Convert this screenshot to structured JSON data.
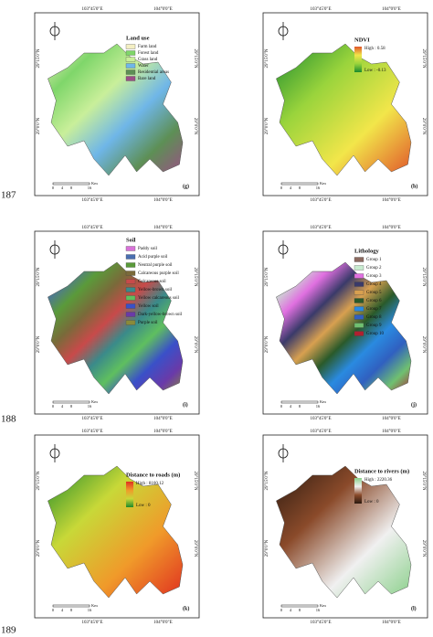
{
  "line_numbers": [
    "187",
    "188",
    "189"
  ],
  "coordinates": {
    "longitudes": [
      "103°45'0\"E",
      "104°0'0\"E"
    ],
    "latitudes": [
      "29°15'0\"N",
      "29°0'0\"N"
    ]
  },
  "scale_bar": {
    "ticks": [
      "0",
      "4",
      "8",
      "16"
    ],
    "unit": "Km"
  },
  "panels": [
    {
      "label": "(g)",
      "legend": {
        "title": "Land use",
        "items": [
          {
            "name": "Farm land",
            "color": "#f4efc4"
          },
          {
            "name": "Forest land",
            "color": "#7fd66a"
          },
          {
            "name": "Grass land",
            "color": "#c9ef9a"
          },
          {
            "name": "Water",
            "color": "#6fb6e8"
          },
          {
            "name": "Residential areas",
            "color": "#5d8f55"
          },
          {
            "name": "Bare land",
            "color": "#9b4f86"
          }
        ]
      }
    },
    {
      "label": "(h)",
      "legend": {
        "title": "NDVI",
        "high": "High : 0.58",
        "low": "Low : -0.13",
        "colors": [
          "#1a8a2e",
          "#9ad43c",
          "#f2e64a",
          "#e0552a"
        ]
      }
    },
    {
      "label": "(i)",
      "legend": {
        "title": "Soil",
        "items": [
          {
            "name": "Paddy soil",
            "color": "#d873d8"
          },
          {
            "name": "Acid purple soil",
            "color": "#4a6fb0"
          },
          {
            "name": "Neutral purple soil",
            "color": "#5a9a3a"
          },
          {
            "name": "Calcareous purple soil",
            "color": "#7a6a3a"
          },
          {
            "name": "Calcareous soil",
            "color": "#c84a4a"
          },
          {
            "name": "Yellow-brown soil",
            "color": "#3a8a8a"
          },
          {
            "name": "Yellow calcareous soil",
            "color": "#5fbf5f"
          },
          {
            "name": "Yellow soil",
            "color": "#3a50c8"
          },
          {
            "name": "Dark-yellow-brown soil",
            "color": "#6a3aa8"
          },
          {
            "name": "Purple soil",
            "color": "#8a8a3a"
          }
        ]
      }
    },
    {
      "label": "(j)",
      "legend": {
        "title": "Lithology",
        "items": [
          {
            "name": "Group 1",
            "color": "#8b6a60"
          },
          {
            "name": "Group 2",
            "color": "#c8ecd0"
          },
          {
            "name": "Group 3",
            "color": "#e070e0"
          },
          {
            "name": "Group 4",
            "color": "#3a3a6a"
          },
          {
            "name": "Group 5",
            "color": "#d8a050"
          },
          {
            "name": "Group 6",
            "color": "#2a5a2a"
          },
          {
            "name": "Group 7",
            "color": "#2a8ae0"
          },
          {
            "name": "Group 8",
            "color": "#3060c0"
          },
          {
            "name": "Group 9",
            "color": "#70c070"
          },
          {
            "name": "Group 10",
            "color": "#b02030"
          }
        ]
      }
    },
    {
      "label": "(k)",
      "legend": {
        "title": "Distance to roads (m)",
        "high": "High : 8160.12",
        "low": "Low : 0",
        "colors": [
          "#1f8a2a",
          "#c8d838",
          "#f09a2a",
          "#e03020"
        ]
      }
    },
    {
      "label": "(l)",
      "legend": {
        "title": "Distance to rivers (m)",
        "high": "High : 2220.36",
        "low": "Low : 0",
        "colors": [
          "#2a1a10",
          "#8a4a2a",
          "#f0f0f0",
          "#8ad08a"
        ]
      }
    }
  ]
}
